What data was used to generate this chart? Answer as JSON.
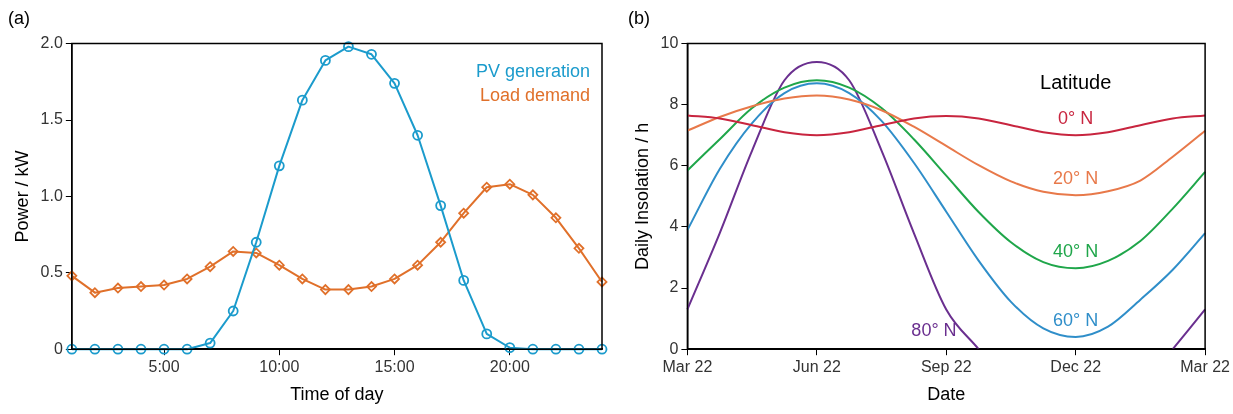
{
  "chart_data": [
    {
      "type": "line",
      "title": "(a)",
      "xlabel": "Time of day",
      "ylabel": "Power / kW",
      "x": [
        1,
        2,
        3,
        4,
        5,
        6,
        7,
        8,
        9,
        10,
        11,
        12,
        13,
        14,
        15,
        16,
        17,
        18,
        19,
        20,
        21,
        22,
        23,
        24
      ],
      "series": [
        {
          "name": "PV generation",
          "color": "#1b9bcc",
          "marker": "circle",
          "values": [
            0,
            0,
            0,
            0,
            0,
            0,
            0.04,
            0.25,
            0.7,
            1.2,
            1.63,
            1.89,
            1.98,
            1.93,
            1.74,
            1.4,
            0.94,
            0.45,
            0.1,
            0.01,
            0,
            0,
            0,
            0
          ]
        },
        {
          "name": "Load demand",
          "color": "#e0702a",
          "marker": "diamond",
          "values": [
            0.48,
            0.37,
            0.4,
            0.41,
            0.42,
            0.46,
            0.54,
            0.64,
            0.63,
            0.55,
            0.46,
            0.39,
            0.39,
            0.41,
            0.46,
            0.55,
            0.7,
            0.89,
            1.06,
            1.08,
            1.01,
            0.86,
            0.66,
            0.44
          ]
        }
      ],
      "xlim": [
        1,
        24
      ],
      "xticks": [
        {
          "value": 5,
          "label": "5:00"
        },
        {
          "value": 10,
          "label": "10:00"
        },
        {
          "value": 15,
          "label": "15:00"
        },
        {
          "value": 20,
          "label": "20:00"
        }
      ],
      "ylim": [
        0,
        2
      ],
      "yticks": [
        0,
        0.5,
        {
          "value": 1,
          "label": "1.0"
        },
        1.5,
        {
          "value": 2,
          "label": "2.0"
        }
      ],
      "grid": false,
      "legend": "top right"
    },
    {
      "type": "line",
      "title": "(b)",
      "xlabel": "Date",
      "ylabel": "Daily Insolation / h",
      "legend_title": "Latitude",
      "categories": [
        "Mar 22",
        null,
        null,
        null,
        "Jun 22",
        null,
        null,
        null,
        "Sep 22",
        null,
        null,
        null,
        "Dec 22",
        null,
        null,
        null,
        "Mar 22"
      ],
      "series": [
        {
          "name": "0° N",
          "color": "#c8253f",
          "values": [
            7.65,
            7.55,
            7.33,
            7.1,
            7.0,
            7.1,
            7.33,
            7.55,
            7.63,
            7.55,
            7.33,
            7.1,
            7.0,
            7.1,
            7.33,
            7.55,
            7.65
          ]
        },
        {
          "name": "20° N",
          "color": "#e8794a",
          "values": [
            7.15,
            7.6,
            7.95,
            8.2,
            8.3,
            8.17,
            7.82,
            7.28,
            6.65,
            6.02,
            5.49,
            5.15,
            5.04,
            5.17,
            5.52,
            6.3,
            7.15
          ]
        },
        {
          "name": "40° N",
          "color": "#1fa64a",
          "values": [
            5.85,
            6.87,
            7.89,
            8.56,
            8.8,
            8.56,
            7.89,
            6.87,
            5.68,
            4.49,
            3.5,
            2.85,
            2.65,
            2.89,
            3.54,
            4.6,
            5.8
          ]
        },
        {
          "name": "60° N",
          "color": "#2f8ec9",
          "values": [
            3.9,
            5.9,
            7.4,
            8.38,
            8.7,
            8.38,
            7.47,
            6.1,
            4.5,
            2.9,
            1.55,
            0.68,
            0.4,
            0.74,
            1.62,
            2.6,
            3.8
          ]
        },
        {
          "name": "80° N",
          "color": "#6a2f8f",
          "values": [
            1.3,
            3.8,
            6.5,
            8.8,
            9.4,
            8.8,
            6.5,
            3.8,
            1.3,
            0,
            null,
            null,
            null,
            null,
            null,
            0,
            1.3
          ]
        }
      ],
      "ylim": [
        0,
        10
      ],
      "yticks": [
        0,
        2,
        4,
        6,
        8,
        10
      ],
      "grid": false
    }
  ]
}
